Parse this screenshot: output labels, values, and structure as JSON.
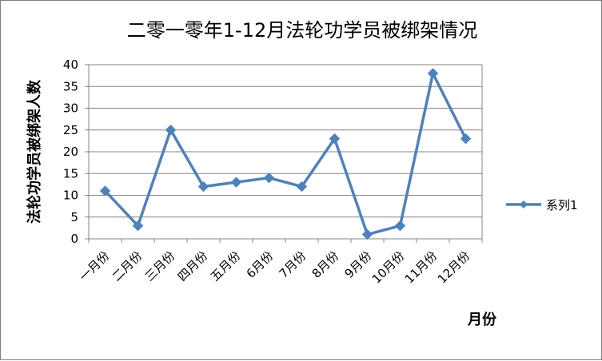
{
  "chart_data": {
    "type": "line",
    "title": "二零一零年1-12月法轮功学员被绑架情况",
    "xlabel": "月份",
    "ylabel": "法轮功学员被绑架人数",
    "categories": [
      "一月份",
      "二月份",
      "三月份",
      "四月份",
      "五月份",
      "6月份",
      "7月份",
      "8月份",
      "9月份",
      "10月份",
      "11月份",
      "12月份"
    ],
    "series": [
      {
        "name": "系列1",
        "values": [
          11,
          3,
          25,
          12,
          13,
          14,
          12,
          23,
          1,
          3,
          38,
          23
        ],
        "color": "#4f81bd",
        "marker": "diamond"
      }
    ],
    "ylim": [
      0,
      40
    ],
    "yticks": [
      0,
      5,
      10,
      15,
      20,
      25,
      30,
      35,
      40
    ],
    "grid": true,
    "legend_position": "right"
  }
}
